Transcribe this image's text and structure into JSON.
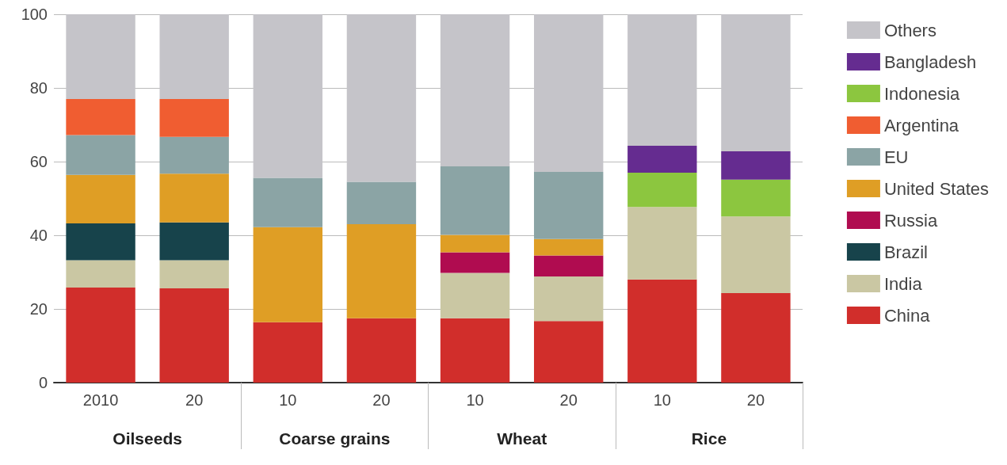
{
  "chart_data": {
    "type": "bar",
    "stacked": true,
    "categories": [
      "2010",
      "20",
      "10",
      "20",
      "10",
      "20",
      "10",
      "20"
    ],
    "annotations": [
      "Oilseeds",
      "Coarse grains",
      "Wheat",
      "Rice"
    ],
    "ylim": [
      0,
      100
    ],
    "yticks": [
      0,
      20,
      40,
      60,
      80,
      100
    ],
    "grid": "y",
    "legend": "right",
    "series": [
      {
        "name": "China",
        "color": "#d12e2b",
        "values": [
          25.8,
          25.6,
          16.4,
          17.5,
          17.5,
          16.7,
          28.0,
          24.3
        ]
      },
      {
        "name": "India",
        "color": "#cac7a3",
        "values": [
          7.4,
          7.6,
          null,
          null,
          12.3,
          12.1,
          19.7,
          20.8
        ]
      },
      {
        "name": "Brazil",
        "color": "#17434b",
        "values": [
          10.0,
          10.3,
          null,
          null,
          null,
          null,
          null,
          null
        ]
      },
      {
        "name": "Russia",
        "color": "#b00c50",
        "values": [
          null,
          null,
          null,
          null,
          5.6,
          5.7,
          null,
          null
        ]
      },
      {
        "name": "United States",
        "color": "#df9e25",
        "values": [
          13.2,
          13.2,
          25.8,
          25.5,
          4.7,
          4.5,
          null,
          null
        ]
      },
      {
        "name": "EU",
        "color": "#8ba4a5",
        "values": [
          10.8,
          10.0,
          13.4,
          11.5,
          18.6,
          18.2,
          null,
          null
        ]
      },
      {
        "name": "Argentina",
        "color": "#f05d31",
        "values": [
          9.8,
          10.3,
          null,
          null,
          null,
          null,
          null,
          null
        ]
      },
      {
        "name": "Indonesia",
        "color": "#8cc63f",
        "values": [
          null,
          null,
          null,
          null,
          null,
          null,
          9.3,
          10.0
        ]
      },
      {
        "name": "Bangladesh",
        "color": "#652c90",
        "values": [
          null,
          null,
          null,
          null,
          null,
          null,
          7.3,
          7.7
        ]
      },
      {
        "name": "Others",
        "color": "#c5c4c9",
        "values": [
          23.0,
          23.0,
          44.4,
          45.5,
          41.3,
          42.8,
          35.7,
          37.2
        ]
      }
    ]
  }
}
